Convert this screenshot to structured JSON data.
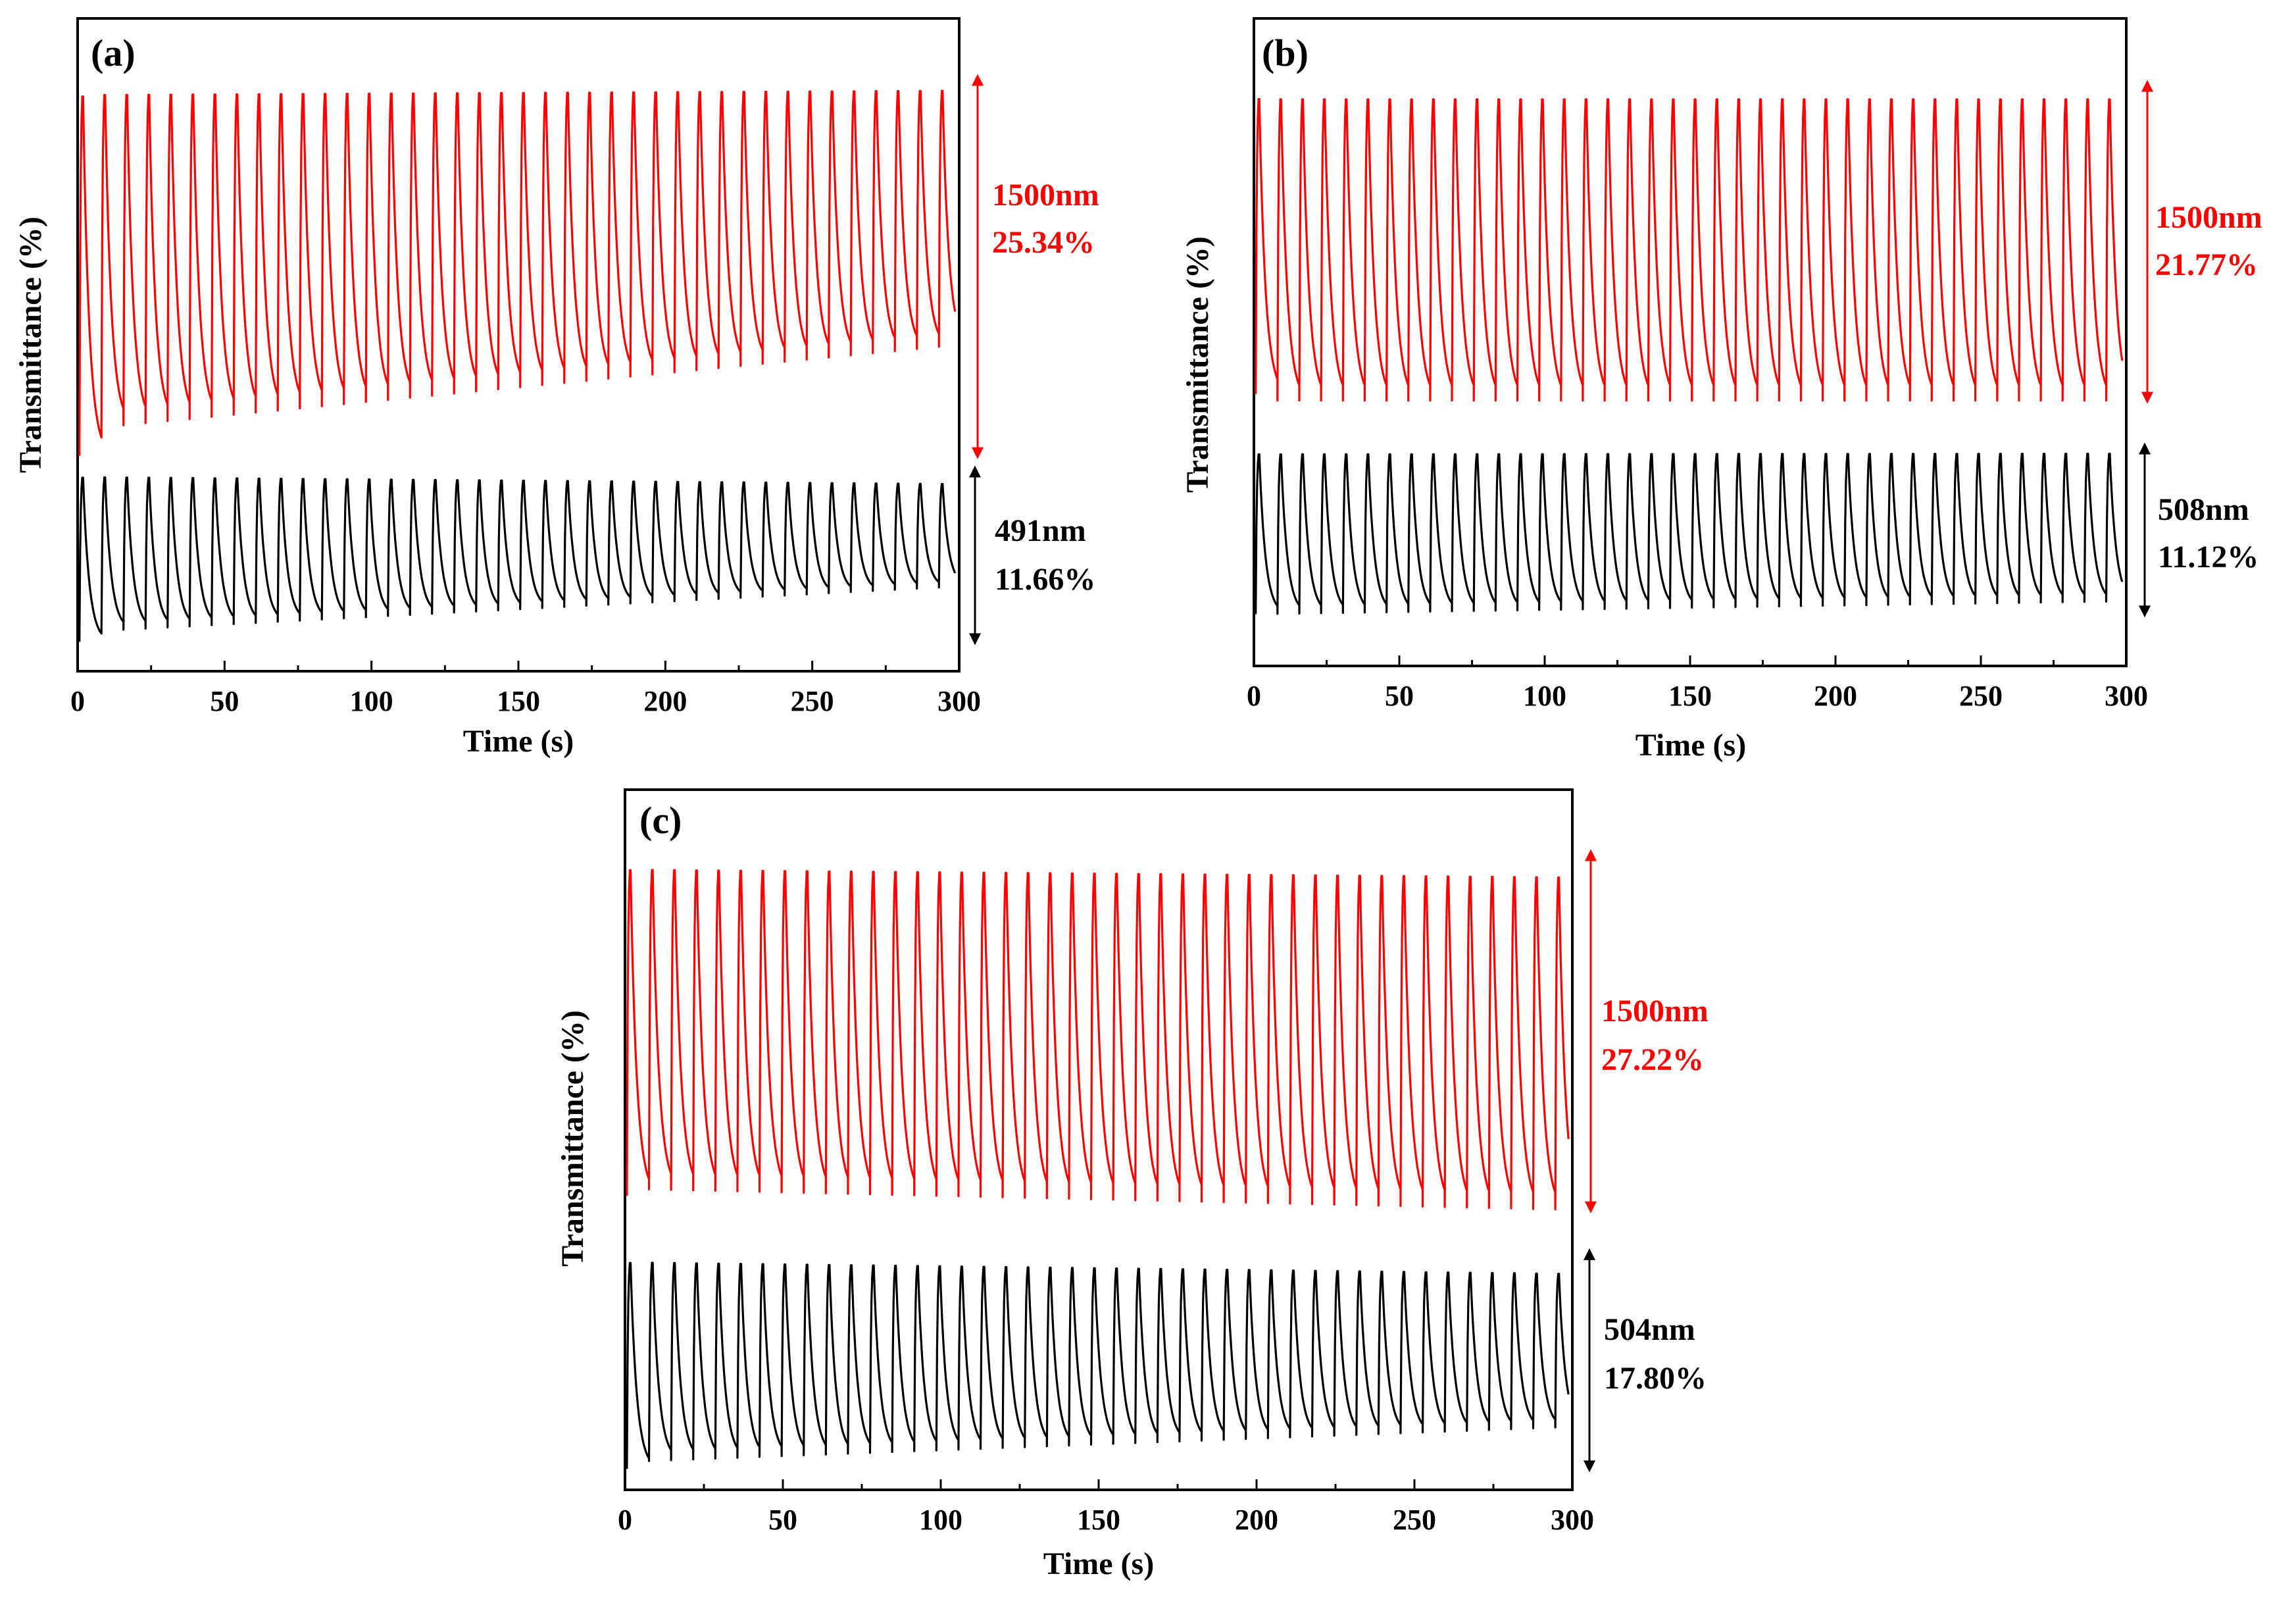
{
  "colors": {
    "red": "#ff0000",
    "black": "#000000"
  },
  "chart_data": [
    {
      "type": "line",
      "panel_label": "(a)",
      "xlabel": "Time (s)",
      "ylabel": "Transmittance (%)",
      "xlim": [
        0,
        300
      ],
      "xticks": [
        "0",
        "50",
        "100",
        "150",
        "200",
        "250",
        "300"
      ],
      "cycle_period_s": 7.5,
      "series": [
        {
          "name": "1500nm",
          "color": "#ff0000",
          "wavelength": "1500nm",
          "contrast": "25.34%",
          "contrast_value": 25.34,
          "high": [
            0.91,
            0.91
          ],
          "low": [
            0.37,
            0.5
          ],
          "first_low": 0.33
        },
        {
          "name": "491nm",
          "color": "#000000",
          "wavelength": "491nm",
          "contrast": "11.66%",
          "contrast_value": 11.66,
          "high": [
            0.31,
            0.295
          ],
          "low": [
            0.06,
            0.13
          ],
          "first_low": 0.045
        }
      ],
      "annotations": [
        {
          "series": "1500nm",
          "line1": "1500nm",
          "line2": "25.34%"
        },
        {
          "series": "491nm",
          "line1": "491nm",
          "line2": "11.66%"
        }
      ]
    },
    {
      "type": "line",
      "panel_label": "(b)",
      "xlabel": "Time (s)",
      "ylabel": "Transmittance (%)",
      "xlim": [
        0,
        300
      ],
      "xticks": [
        "0",
        "50",
        "100",
        "150",
        "200",
        "250",
        "300"
      ],
      "cycle_period_s": 7.5,
      "series": [
        {
          "name": "1500nm",
          "color": "#ff0000",
          "wavelength": "1500nm",
          "contrast": "21.77%",
          "contrast_value": 21.77,
          "high": [
            0.9,
            0.9
          ],
          "low": [
            0.41,
            0.41
          ],
          "first_low": 0.42
        },
        {
          "name": "508nm",
          "color": "#000000",
          "wavelength": "508nm",
          "contrast": "11.12%",
          "contrast_value": 11.12,
          "high": [
            0.34,
            0.34
          ],
          "low": [
            0.08,
            0.1
          ],
          "first_low": 0.08
        }
      ],
      "annotations": [
        {
          "series": "1500nm",
          "line1": "1500nm",
          "line2": "21.77%"
        },
        {
          "series": "508nm",
          "line1": "508nm",
          "line2": "11.12%"
        }
      ]
    },
    {
      "type": "line",
      "panel_label": "(c)",
      "xlabel": "Time (s)",
      "ylabel": "Transmittance (%)",
      "xlim": [
        0,
        300
      ],
      "xticks": [
        "0",
        "50",
        "100",
        "150",
        "200",
        "250",
        "300"
      ],
      "cycle_period_s": 7.0,
      "series": [
        {
          "name": "1500nm",
          "color": "#ff0000",
          "wavelength": "1500nm",
          "contrast": "27.22%",
          "contrast_value": 27.22,
          "high": [
            0.91,
            0.9
          ],
          "low": [
            0.43,
            0.4
          ],
          "first_low": 0.42
        },
        {
          "name": "504nm",
          "color": "#000000",
          "wavelength": "504nm",
          "contrast": "17.80%",
          "contrast_value": 17.8,
          "high": [
            0.34,
            0.32
          ],
          "low": [
            0.04,
            0.09
          ],
          "first_low": 0.03
        }
      ],
      "annotations": [
        {
          "series": "1500nm",
          "line1": "1500nm",
          "line2": "27.22%"
        },
        {
          "series": "504nm",
          "line1": "504nm",
          "line2": "17.80%"
        }
      ]
    }
  ]
}
